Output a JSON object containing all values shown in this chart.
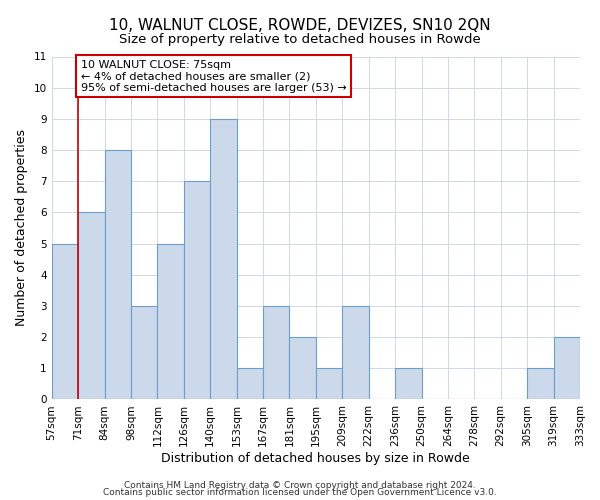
{
  "title": "10, WALNUT CLOSE, ROWDE, DEVIZES, SN10 2QN",
  "subtitle": "Size of property relative to detached houses in Rowde",
  "xlabel": "Distribution of detached houses by size in Rowde",
  "ylabel": "Number of detached properties",
  "bin_labels": [
    "57sqm",
    "71sqm",
    "84sqm",
    "98sqm",
    "112sqm",
    "126sqm",
    "140sqm",
    "153sqm",
    "167sqm",
    "181sqm",
    "195sqm",
    "209sqm",
    "222sqm",
    "236sqm",
    "250sqm",
    "264sqm",
    "278sqm",
    "292sqm",
    "305sqm",
    "319sqm",
    "333sqm"
  ],
  "bar_values": [
    5,
    6,
    8,
    3,
    5,
    7,
    9,
    1,
    3,
    2,
    1,
    3,
    0,
    1,
    0,
    0,
    0,
    0,
    1,
    2
  ],
  "bar_color": "#ccd9ea",
  "bar_edge_color": "#6b9ec8",
  "vline_x_index": 1,
  "vline_color": "#cc0000",
  "annotation_lines": [
    "10 WALNUT CLOSE: 75sqm",
    "← 4% of detached houses are smaller (2)",
    "95% of semi-detached houses are larger (53) →"
  ],
  "annotation_box_edge_color": "#cc0000",
  "ylim": [
    0,
    11
  ],
  "yticks": [
    0,
    1,
    2,
    3,
    4,
    5,
    6,
    7,
    8,
    9,
    10,
    11
  ],
  "footer_line1": "Contains HM Land Registry data © Crown copyright and database right 2024.",
  "footer_line2": "Contains public sector information licensed under the Open Government Licence v3.0.",
  "background_color": "#ffffff",
  "grid_color": "#d0d8e8",
  "title_fontsize": 11,
  "subtitle_fontsize": 9.5,
  "axis_label_fontsize": 9,
  "tick_fontsize": 7.5,
  "annotation_fontsize": 8,
  "footer_fontsize": 6.5
}
